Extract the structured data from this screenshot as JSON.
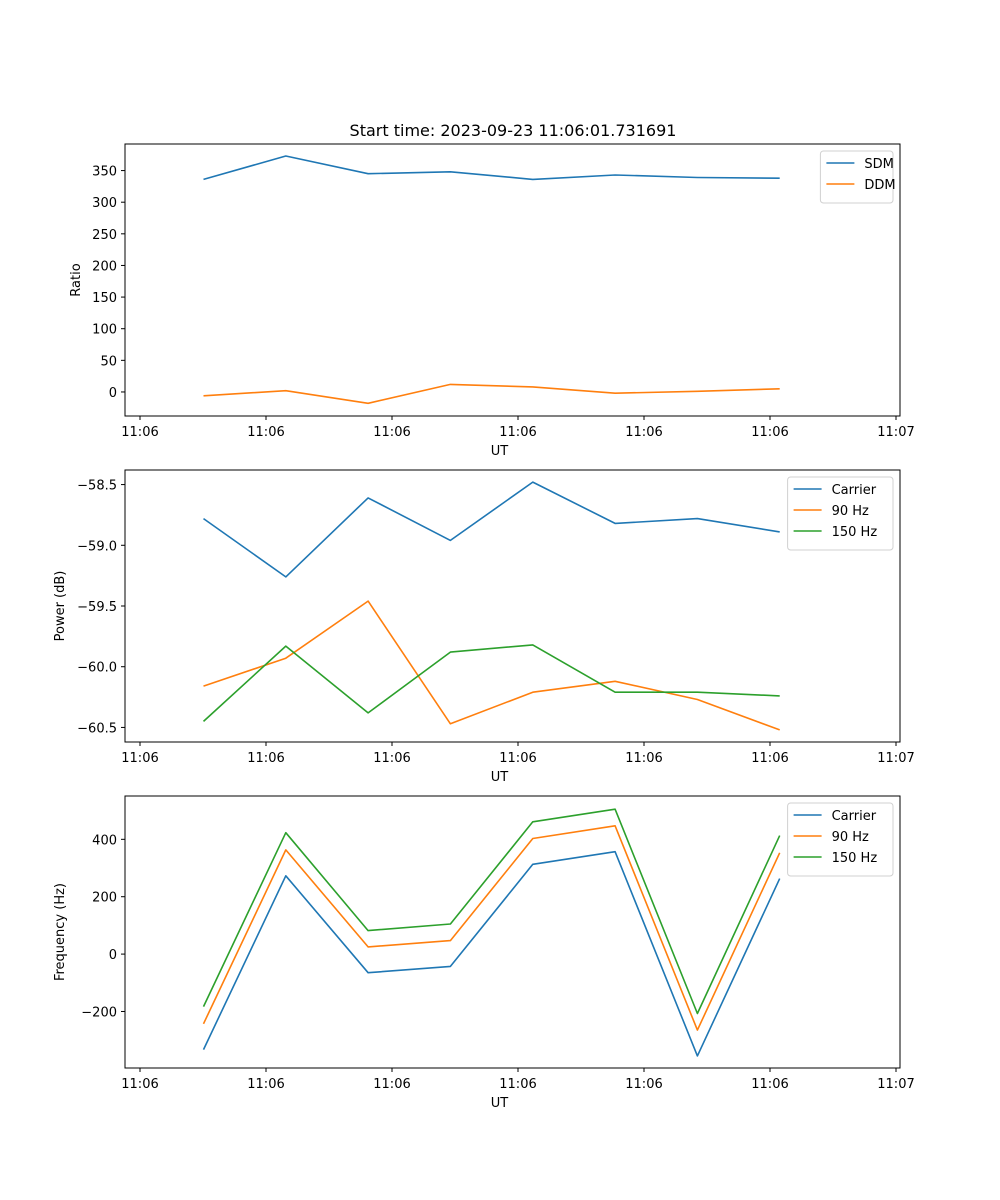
{
  "figure_title": "Start time: 2023-09-23 11:06:01.731691",
  "chart_data": [
    {
      "type": "line",
      "xlabel": "UT",
      "ylabel": "Ratio",
      "x_tick_labels": [
        "11:06",
        "11:06",
        "11:06",
        "11:06",
        "11:06",
        "11:06",
        "11:07"
      ],
      "x": [
        0.5,
        1.15,
        1.8,
        2.45,
        3.1,
        3.75,
        4.4,
        5.05
      ],
      "xlim": [
        -0.12,
        6.0
      ],
      "ylim": [
        -38,
        392
      ],
      "yticks": [
        0,
        50,
        100,
        150,
        200,
        250,
        300,
        350
      ],
      "legend_location": "upper right",
      "series": [
        {
          "name": "SDM",
          "color": "#1f77b4",
          "values": [
            336,
            373,
            345,
            348,
            336,
            343,
            339,
            338
          ]
        },
        {
          "name": "DDM",
          "color": "#ff7f0e",
          "values": [
            -6,
            2,
            -18,
            12,
            8,
            -2,
            1,
            5
          ]
        }
      ]
    },
    {
      "type": "line",
      "xlabel": "UT",
      "ylabel": "Power (dB)",
      "x_tick_labels": [
        "11:06",
        "11:06",
        "11:06",
        "11:06",
        "11:06",
        "11:06",
        "11:07"
      ],
      "x": [
        0.5,
        1.15,
        1.8,
        2.45,
        3.1,
        3.75,
        4.4,
        5.05
      ],
      "xlim": [
        -0.12,
        6.0
      ],
      "ylim": [
        -60.62,
        -58.38
      ],
      "yticks": [
        -60.5,
        -60.0,
        -59.5,
        -59.0,
        -58.5
      ],
      "ytick_labels": [
        "−60.5",
        "−60.0",
        "−59.5",
        "−59.0",
        "−58.5"
      ],
      "legend_location": "upper right",
      "series": [
        {
          "name": "Carrier",
          "color": "#1f77b4",
          "values": [
            -58.78,
            -59.26,
            -58.61,
            -58.96,
            -58.48,
            -58.82,
            -58.78,
            -58.89
          ]
        },
        {
          "name": "90 Hz",
          "color": "#ff7f0e",
          "values": [
            -60.16,
            -59.93,
            -59.46,
            -60.47,
            -60.21,
            -60.12,
            -60.27,
            -60.52
          ]
        },
        {
          "name": "150 Hz",
          "color": "#2ca02c",
          "values": [
            -60.45,
            -59.83,
            -60.38,
            -59.88,
            -59.82,
            -60.21,
            -60.21,
            -60.24
          ]
        }
      ]
    },
    {
      "type": "line",
      "xlabel": "UT",
      "ylabel": "Frequency (Hz)",
      "x_tick_labels": [
        "11:06",
        "11:06",
        "11:06",
        "11:06",
        "11:06",
        "11:06",
        "11:07"
      ],
      "x": [
        0.5,
        1.15,
        1.8,
        2.45,
        3.1,
        3.75,
        4.4,
        5.05
      ],
      "xlim": [
        -0.12,
        6.0
      ],
      "ylim": [
        -397,
        551
      ],
      "yticks": [
        -200,
        0,
        200,
        400
      ],
      "ytick_labels": [
        "−200",
        "0",
        "200",
        "400"
      ],
      "legend_location": "upper right",
      "series": [
        {
          "name": "Carrier",
          "color": "#1f77b4",
          "values": [
            -333,
            273,
            -65,
            -43,
            313,
            357,
            -355,
            263
          ]
        },
        {
          "name": "90 Hz",
          "color": "#ff7f0e",
          "values": [
            -243,
            363,
            25,
            47,
            403,
            447,
            -265,
            353
          ]
        },
        {
          "name": "150 Hz",
          "color": "#2ca02c",
          "values": [
            -183,
            423,
            82,
            105,
            461,
            505,
            -207,
            413
          ]
        }
      ]
    }
  ]
}
